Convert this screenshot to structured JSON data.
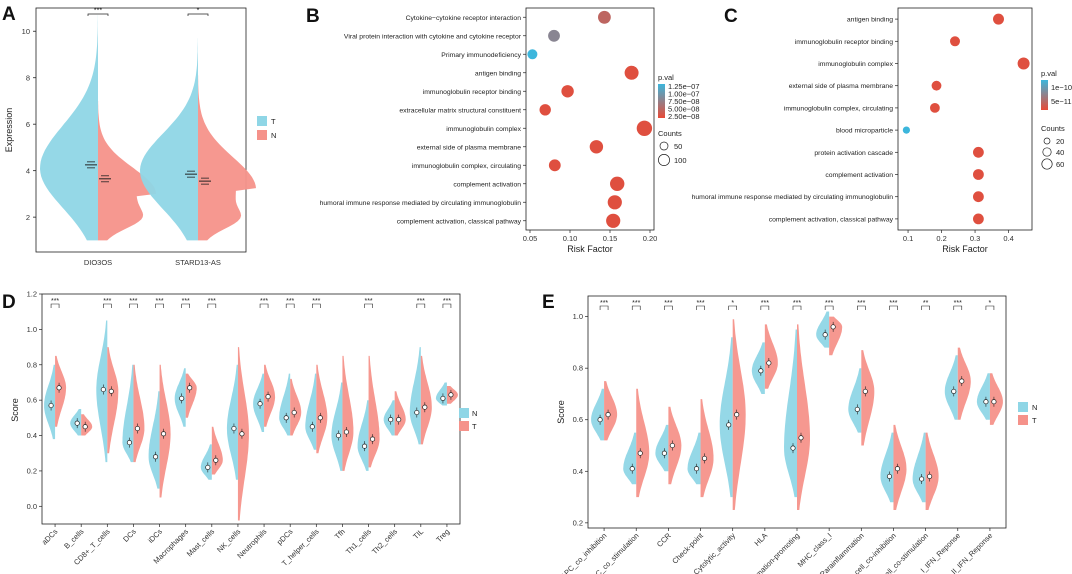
{
  "colors": {
    "T": "#8fd6e6",
    "N": "#f5928a",
    "dot_high": "#3cb6dc",
    "dot_low": "#e84a37"
  },
  "chart_data": [
    {
      "panel": "A",
      "type": "violin",
      "ylabel": "Expression",
      "ylim": [
        0.5,
        11
      ],
      "yticks": [
        2,
        4,
        6,
        8,
        10
      ],
      "legend": [
        "T",
        "N"
      ],
      "groups": [
        {
          "name": "DIO3OS",
          "sig": "***",
          "T_median": 4.25,
          "N_median": 3.65,
          "T_max": 10.7,
          "N_max": 7.0,
          "T_mode": 4.1,
          "N_mode": 3.0,
          "min": 1.0
        },
        {
          "name": "STARD13-AS",
          "sig": "*",
          "T_median": 3.85,
          "N_median": 3.55,
          "T_max": 9.7,
          "N_max": 8.1,
          "T_mode": 4.0,
          "N_mode": 3.2,
          "min": 1.0
        }
      ]
    },
    {
      "panel": "B",
      "type": "bubble",
      "xlabel": "Risk Factor",
      "xlim": [
        0.045,
        0.205
      ],
      "xticks": [
        0.05,
        0.1,
        0.15,
        0.2
      ],
      "xtick_labels": [
        "0.05",
        "0.10",
        "0.15",
        "0.20"
      ],
      "terms": [
        "Cytokine−cytokine receptor interaction",
        "Viral protein interaction with cytokine and cytokine receptor",
        "Primary immunodeficiency",
        "antigen binding",
        "immunoglobulin receptor binding",
        "extracellular matrix structural constituent",
        "immunoglobulin complex",
        "external side of plasma membrane",
        "immunoglobulin complex, circulating",
        "complement activation",
        "humoral immune response mediated by circulating immunoglobulin",
        "complement activation, classical pathway"
      ],
      "x": [
        0.143,
        0.08,
        0.053,
        0.177,
        0.097,
        0.069,
        0.193,
        0.133,
        0.081,
        0.159,
        0.156,
        0.154
      ],
      "counts": [
        60,
        45,
        25,
        80,
        55,
        40,
        110,
        70,
        45,
        90,
        85,
        85
      ],
      "pval_level": [
        0.75,
        0.45,
        0.0,
        0.95,
        0.95,
        0.95,
        0.95,
        0.95,
        0.95,
        0.95,
        0.95,
        0.95
      ],
      "legend_pval_title": "p.val",
      "legend_pval": [
        "1.25e−07",
        "1.00e−07",
        "7.50e−08",
        "5.00e−08",
        "2.50e−08"
      ],
      "legend_counts_title": "Counts",
      "legend_counts": [
        50,
        100
      ]
    },
    {
      "panel": "C",
      "type": "bubble",
      "xlabel": "Risk Factor",
      "xlim": [
        0.07,
        0.47
      ],
      "xticks": [
        0.1,
        0.2,
        0.3,
        0.4
      ],
      "xtick_labels": [
        "0.1",
        "0.2",
        "0.3",
        "0.4"
      ],
      "terms": [
        "antigen binding",
        "immunoglobulin receptor binding",
        "immunoglobulin complex",
        "external side of plasma membrane",
        "immunoglobulin complex, circulating",
        "blood microparticle",
        "protein activation cascade",
        "complement activation",
        "humoral immune response mediated by circulating immunoglobulin",
        "complement activation, classical pathway"
      ],
      "x": [
        0.37,
        0.24,
        0.445,
        0.185,
        0.18,
        0.095,
        0.31,
        0.31,
        0.31,
        0.31
      ],
      "counts": [
        55,
        40,
        70,
        35,
        35,
        10,
        50,
        50,
        50,
        50
      ],
      "pval_level": [
        0.95,
        0.95,
        0.95,
        0.95,
        0.95,
        0.0,
        0.95,
        0.95,
        0.95,
        0.95
      ],
      "legend_pval_title": "p.val",
      "legend_pval": [
        "1e−10",
        "5e−11"
      ],
      "legend_counts_title": "Counts",
      "legend_counts": [
        20,
        40,
        60
      ]
    },
    {
      "panel": "D",
      "type": "split_violin",
      "ylabel": "Score",
      "ylim": [
        -0.1,
        1.2
      ],
      "yticks": [
        0.0,
        0.2,
        0.4,
        0.6,
        0.8,
        1.0,
        1.2
      ],
      "ytick_labels": [
        "0.0",
        "0.2",
        "0.4",
        "0.6",
        "0.8",
        "1.0",
        "1.2"
      ],
      "legend": [
        "N",
        "T"
      ],
      "categories": [
        "aDCs",
        "B_cells",
        "CD8+_T_cells",
        "DCs",
        "iDCs",
        "Macrophages",
        "Mast_cells",
        "NK_cells",
        "Neutrophils",
        "pDCs",
        "T_helper_cells",
        "Tfh",
        "Th1_cells",
        "Th2_cells",
        "TIL",
        "Treg"
      ],
      "sig": [
        "***",
        "",
        "***",
        "***",
        "***",
        "***",
        "***",
        "",
        "***",
        "***",
        "***",
        "",
        "***",
        "",
        "***",
        "***"
      ],
      "N_median": [
        0.57,
        0.47,
        0.66,
        0.36,
        0.28,
        0.61,
        0.22,
        0.44,
        0.58,
        0.5,
        0.45,
        0.4,
        0.34,
        0.49,
        0.53,
        0.61
      ],
      "T_median": [
        0.67,
        0.45,
        0.65,
        0.44,
        0.41,
        0.67,
        0.26,
        0.41,
        0.62,
        0.53,
        0.5,
        0.42,
        0.38,
        0.49,
        0.56,
        0.63
      ],
      "N_range": [
        [
          0.38,
          0.8
        ],
        [
          0.4,
          0.55
        ],
        [
          0.25,
          1.05
        ],
        [
          0.25,
          0.8
        ],
        [
          0.1,
          0.65
        ],
        [
          0.45,
          0.78
        ],
        [
          0.15,
          0.35
        ],
        [
          0.15,
          0.8
        ],
        [
          0.42,
          0.75
        ],
        [
          0.4,
          0.75
        ],
        [
          0.32,
          0.75
        ],
        [
          0.2,
          0.7
        ],
        [
          0.2,
          0.6
        ],
        [
          0.4,
          0.6
        ],
        [
          0.35,
          0.9
        ],
        [
          0.57,
          0.7
        ]
      ],
      "T_range": [
        [
          0.45,
          0.85
        ],
        [
          0.4,
          0.52
        ],
        [
          0.3,
          0.9
        ],
        [
          0.25,
          0.8
        ],
        [
          0.05,
          0.8
        ],
        [
          0.5,
          0.75
        ],
        [
          0.18,
          0.45
        ],
        [
          -0.08,
          0.9
        ],
        [
          0.45,
          0.8
        ],
        [
          0.4,
          0.72
        ],
        [
          0.3,
          0.8
        ],
        [
          0.2,
          0.85
        ],
        [
          0.22,
          0.85
        ],
        [
          0.4,
          0.65
        ],
        [
          0.35,
          0.85
        ],
        [
          0.58,
          0.68
        ]
      ]
    },
    {
      "panel": "E",
      "type": "split_violin",
      "ylabel": "Score",
      "ylim": [
        0.18,
        1.08
      ],
      "yticks": [
        0.2,
        0.4,
        0.6,
        0.8,
        1.0
      ],
      "ytick_labels": [
        "0.2",
        "0.4",
        "0.6",
        "0.8",
        "1.0"
      ],
      "legend": [
        "N",
        "T"
      ],
      "categories": [
        "APC_co_inhibition",
        "APC_co_stimulation",
        "CCR",
        "Check-point",
        "Cytolytic_activity",
        "HLA",
        "Inflammation-promoting",
        "MHC_class_I",
        "Parainflammation",
        "T_cell_co-inhibition",
        "T_cell_co-stimulation",
        "Type_I_IFN_Reponse",
        "Type_II_IFN_Reponse"
      ],
      "sig": [
        "***",
        "***",
        "***",
        "***",
        "*",
        "***",
        "***",
        "***",
        "***",
        "***",
        "**",
        "***",
        "*"
      ],
      "N_median": [
        0.6,
        0.41,
        0.47,
        0.41,
        0.58,
        0.79,
        0.49,
        0.93,
        0.64,
        0.38,
        0.37,
        0.71,
        0.67
      ],
      "T_median": [
        0.62,
        0.47,
        0.5,
        0.45,
        0.62,
        0.82,
        0.53,
        0.96,
        0.71,
        0.41,
        0.38,
        0.75,
        0.67
      ],
      "N_range": [
        [
          0.52,
          0.72
        ],
        [
          0.35,
          0.55
        ],
        [
          0.4,
          0.58
        ],
        [
          0.35,
          0.55
        ],
        [
          0.3,
          0.92
        ],
        [
          0.7,
          0.9
        ],
        [
          0.3,
          0.95
        ],
        [
          0.88,
          1.02
        ],
        [
          0.55,
          0.8
        ],
        [
          0.28,
          0.55
        ],
        [
          0.28,
          0.55
        ],
        [
          0.6,
          0.85
        ],
        [
          0.6,
          0.78
        ]
      ],
      "T_range": [
        [
          0.52,
          0.75
        ],
        [
          0.3,
          0.72
        ],
        [
          0.35,
          0.65
        ],
        [
          0.3,
          0.68
        ],
        [
          0.25,
          0.99
        ],
        [
          0.72,
          0.97
        ],
        [
          0.25,
          0.97
        ],
        [
          0.85,
          1.0
        ],
        [
          0.5,
          0.87
        ],
        [
          0.25,
          0.58
        ],
        [
          0.25,
          0.55
        ],
        [
          0.6,
          0.88
        ],
        [
          0.58,
          0.78
        ]
      ]
    }
  ]
}
